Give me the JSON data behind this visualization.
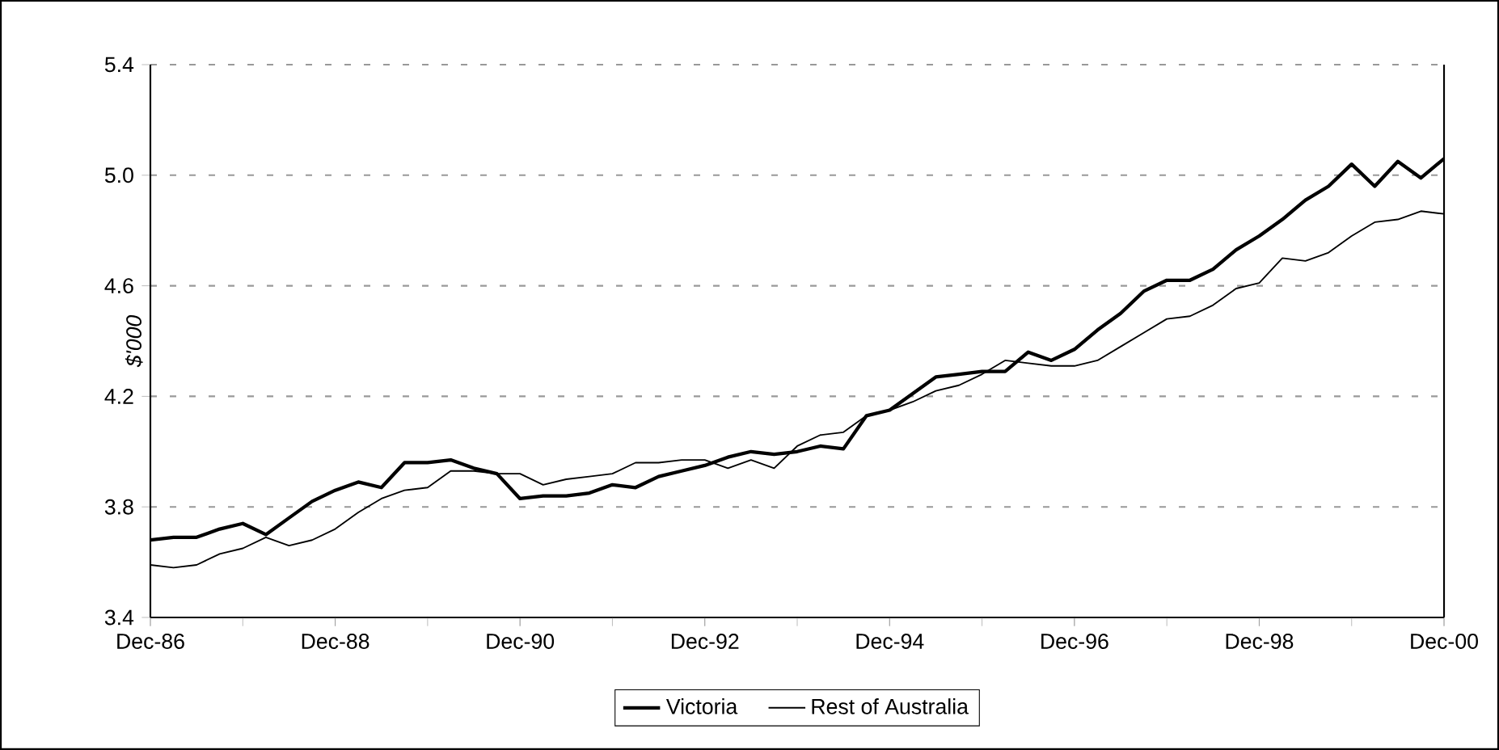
{
  "chart_data": {
    "type": "line",
    "ylabel": "$'000",
    "categories": [
      "Dec-86",
      null,
      null,
      null,
      null,
      null,
      null,
      null,
      "Dec-88",
      null,
      null,
      null,
      null,
      null,
      null,
      null,
      "Dec-90",
      null,
      null,
      null,
      null,
      null,
      null,
      null,
      "Dec-92",
      null,
      null,
      null,
      null,
      null,
      null,
      null,
      "Dec-94",
      null,
      null,
      null,
      null,
      null,
      null,
      null,
      "Dec-96",
      null,
      null,
      null,
      null,
      null,
      null,
      null,
      "Dec-98",
      null,
      null,
      null,
      null,
      null,
      null,
      null,
      "Dec-00"
    ],
    "series": [
      {
        "name": "Victoria",
        "color": "#000000",
        "values": [
          3.68,
          3.69,
          3.69,
          3.72,
          3.74,
          3.7,
          3.76,
          3.82,
          3.86,
          3.89,
          3.87,
          3.96,
          3.96,
          3.97,
          3.94,
          3.92,
          3.83,
          3.84,
          3.84,
          3.85,
          3.88,
          3.87,
          3.91,
          3.93,
          3.95,
          3.98,
          4.0,
          3.99,
          4.0,
          4.02,
          4.01,
          4.13,
          4.15,
          4.21,
          4.27,
          4.28,
          4.29,
          4.29,
          4.36,
          4.33,
          4.37,
          4.44,
          4.5,
          4.58,
          4.62,
          4.62,
          4.66,
          4.73,
          4.78,
          4.84,
          4.91,
          4.96,
          5.04,
          4.96,
          5.05,
          4.99,
          5.06
        ]
      },
      {
        "name": "Rest of Australia",
        "color": "#000000",
        "values": [
          3.59,
          3.58,
          3.59,
          3.63,
          3.65,
          3.69,
          3.66,
          3.68,
          3.72,
          3.78,
          3.83,
          3.86,
          3.87,
          3.93,
          3.93,
          3.92,
          3.92,
          3.88,
          3.9,
          3.91,
          3.92,
          3.96,
          3.96,
          3.97,
          3.97,
          3.94,
          3.97,
          3.94,
          4.02,
          4.06,
          4.07,
          4.13,
          4.15,
          4.18,
          4.22,
          4.24,
          4.28,
          4.33,
          4.32,
          4.31,
          4.31,
          4.33,
          4.38,
          4.43,
          4.48,
          4.49,
          4.53,
          4.59,
          4.61,
          4.7,
          4.69,
          4.72,
          4.78,
          4.83,
          4.84,
          4.87,
          4.86
        ]
      }
    ],
    "ylim": [
      3.4,
      5.4
    ],
    "yticks": [
      3.4,
      3.8,
      4.2,
      4.6,
      {
        "value": 5,
        "label": "5.0"
      },
      5.4
    ],
    "grid": "y",
    "legend": "bottom",
    "marker": "none",
    "line_style": "solid"
  }
}
